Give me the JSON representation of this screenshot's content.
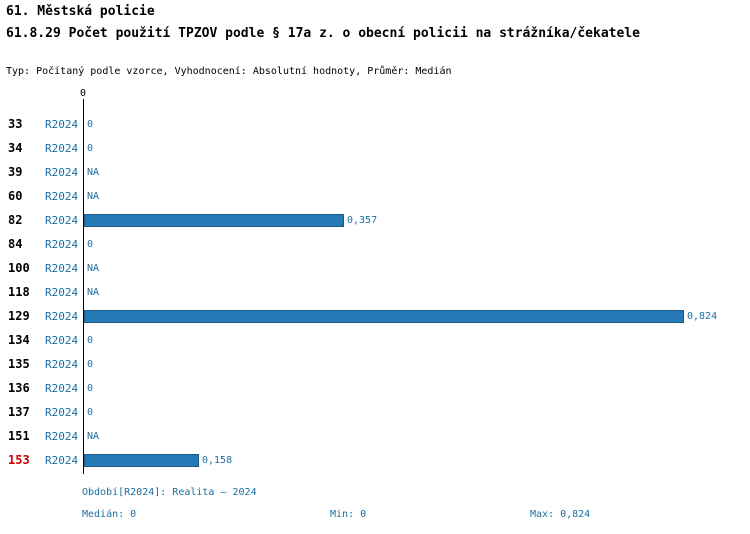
{
  "header": {
    "title": "61. Městská policie",
    "subtitle": "61.8.29 Počet použití TPZOV podle § 17a z. o obecní policii na strážníka/čekatele",
    "meta": "Typ: Počítaný podle vzorce, Vyhodnocení: Absolutní hodnoty, Průměr: Medián"
  },
  "chart_data": {
    "type": "bar",
    "orientation": "horizontal",
    "axis_top_label": "0",
    "xlim": [
      0,
      0.9
    ],
    "max_value": 0.824,
    "rows": [
      {
        "id": "33",
        "period": "R2024",
        "value": 0,
        "label": "0"
      },
      {
        "id": "34",
        "period": "R2024",
        "value": 0,
        "label": "0"
      },
      {
        "id": "39",
        "period": "R2024",
        "value": null,
        "label": "NA"
      },
      {
        "id": "60",
        "period": "R2024",
        "value": null,
        "label": "NA"
      },
      {
        "id": "82",
        "period": "R2024",
        "value": 0.357,
        "label": "0,357"
      },
      {
        "id": "84",
        "period": "R2024",
        "value": 0,
        "label": "0"
      },
      {
        "id": "100",
        "period": "R2024",
        "value": null,
        "label": "NA"
      },
      {
        "id": "118",
        "period": "R2024",
        "value": null,
        "label": "NA"
      },
      {
        "id": "129",
        "period": "R2024",
        "value": 0.824,
        "label": "0,824"
      },
      {
        "id": "134",
        "period": "R2024",
        "value": 0,
        "label": "0"
      },
      {
        "id": "135",
        "period": "R2024",
        "value": 0,
        "label": "0"
      },
      {
        "id": "136",
        "period": "R2024",
        "value": 0,
        "label": "0"
      },
      {
        "id": "137",
        "period": "R2024",
        "value": 0,
        "label": "0"
      },
      {
        "id": "151",
        "period": "R2024",
        "value": null,
        "label": "NA"
      },
      {
        "id": "153",
        "period": "R2024",
        "value": 0.158,
        "label": "0,158",
        "highlight": true
      }
    ]
  },
  "footer": {
    "period_line": "Období[R2024]: Realita – 2024",
    "median": "Medián: 0",
    "min": "Min: 0",
    "max": "Max: 0,824"
  },
  "colors": {
    "bar": "#2579b5",
    "text_blue": "#1a6fa0",
    "highlight_red": "#cc0000"
  }
}
